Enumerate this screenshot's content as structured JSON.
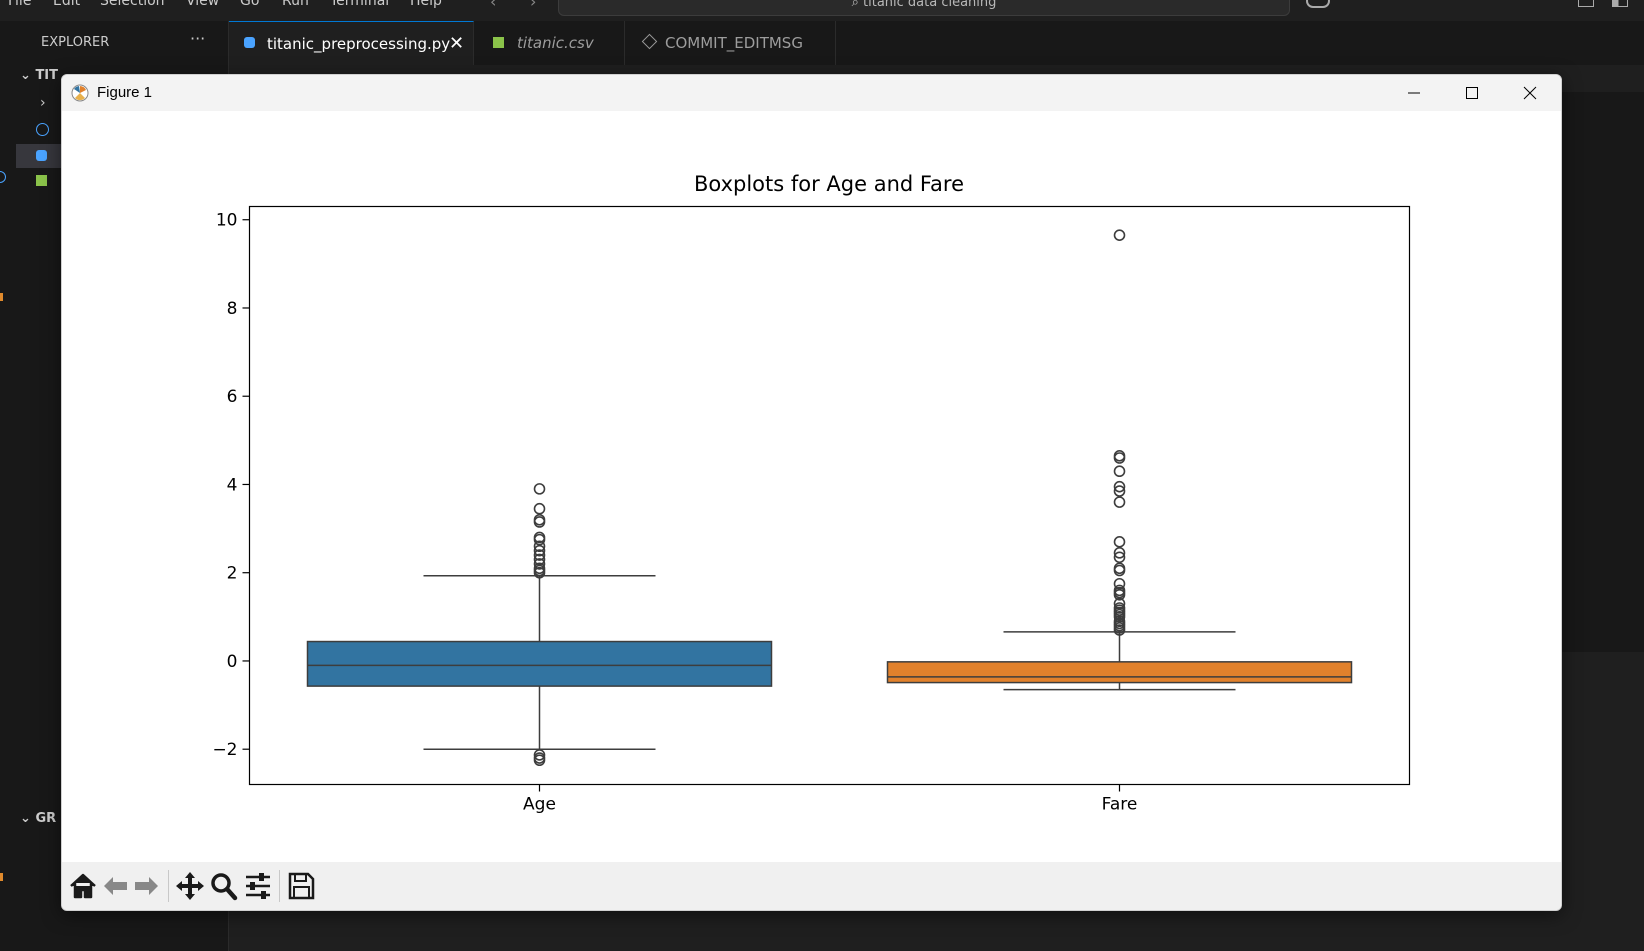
{
  "vscode": {
    "menu": [
      "File",
      "Edit",
      "Selection",
      "View",
      "Go",
      "Run",
      "Terminal",
      "Help"
    ],
    "search_text": "titanic data cleaning",
    "explorer_title": "EXPLORER",
    "explorer_more": "···",
    "folder_label": "TIT",
    "section_label": "GR",
    "tabs": [
      {
        "label": "titanic_preprocessing.py",
        "icon": "python-icon",
        "active": true
      },
      {
        "label": "titanic.csv",
        "icon": "table-icon",
        "active": false
      },
      {
        "label": "COMMIT_EDITMSG",
        "icon": "git-icon",
        "active": false
      }
    ]
  },
  "figure": {
    "window_title": "Figure 1",
    "toolbar": [
      "home-icon",
      "back-icon",
      "forward-icon",
      "pan-icon",
      "zoom-icon",
      "configure-icon",
      "save-icon"
    ]
  },
  "chart_data": {
    "type": "box",
    "title": "Boxplots for Age and Fare",
    "xlabel": "",
    "ylabel": "",
    "ylim": [
      -2.8,
      10.3
    ],
    "yticks": [
      -2,
      0,
      2,
      4,
      6,
      8,
      10
    ],
    "ytick_labels": [
      "−2",
      "0",
      "2",
      "4",
      "6",
      "8",
      "10"
    ],
    "categories": [
      "Age",
      "Fare"
    ],
    "colors": [
      "#3274a1",
      "#e1812c"
    ],
    "boxes": [
      {
        "name": "Age",
        "whislo": -2.0,
        "q1": -0.57,
        "med": -0.1,
        "q3": 0.44,
        "whishi": 1.93,
        "fliers": [
          2.0,
          2.05,
          2.1,
          2.2,
          2.3,
          2.4,
          2.5,
          2.6,
          2.75,
          2.8,
          3.15,
          3.2,
          3.45,
          3.9,
          -2.13,
          -2.2,
          -2.25
        ]
      },
      {
        "name": "Fare",
        "whislo": -0.65,
        "q1": -0.49,
        "med": -0.36,
        "q3": -0.02,
        "whishi": 0.66,
        "fliers": [
          0.7,
          0.75,
          0.8,
          0.85,
          0.9,
          1.0,
          1.05,
          1.1,
          1.15,
          1.2,
          1.3,
          1.5,
          1.55,
          1.6,
          1.75,
          2.05,
          2.1,
          2.35,
          2.45,
          2.7,
          3.6,
          3.85,
          3.95,
          4.3,
          4.6,
          4.65,
          9.65
        ]
      }
    ]
  }
}
